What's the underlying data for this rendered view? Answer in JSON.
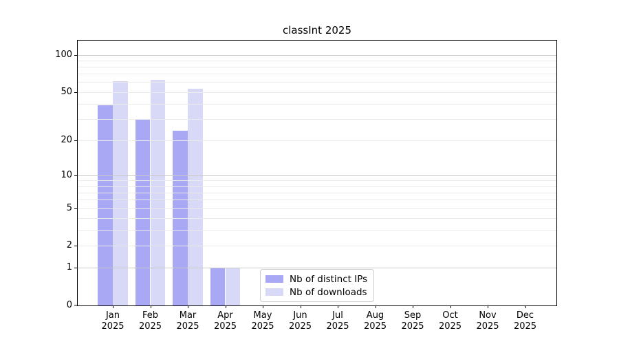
{
  "chart_data": {
    "type": "bar",
    "title": "classInt 2025",
    "categories": [
      "Jan",
      "Feb",
      "Mar",
      "Apr",
      "May",
      "Jun",
      "Jul",
      "Aug",
      "Sep",
      "Oct",
      "Nov",
      "Dec"
    ],
    "year_label": "2025",
    "series": [
      {
        "name": "Nb of distinct IPs",
        "color": "#a8a8f5",
        "values": [
          39,
          30,
          24,
          1,
          0,
          0,
          0,
          0,
          0,
          0,
          0,
          0
        ]
      },
      {
        "name": "Nb of downloads",
        "color": "#d8d8f7",
        "values": [
          61,
          63,
          53,
          1,
          0,
          0,
          0,
          0,
          0,
          0,
          0,
          0
        ]
      }
    ],
    "xlabel": "",
    "ylabel": "",
    "yscale": "log1p",
    "ylim": [
      0,
      130
    ],
    "yticks": [
      0,
      1,
      2,
      5,
      10,
      20,
      50,
      100
    ],
    "major_gridlines": [
      1,
      10,
      100
    ],
    "minor_gridlines": [
      2,
      3,
      4,
      5,
      6,
      7,
      8,
      9,
      20,
      30,
      40,
      50,
      60,
      70,
      80,
      90
    ],
    "grid": true,
    "legend_position": "lower center",
    "colors": {
      "major_grid": "#c9c9c9",
      "minor_grid": "#ebebeb",
      "spine": "#000000",
      "legend_border": "#cccccc",
      "background": "#ffffff"
    }
  }
}
